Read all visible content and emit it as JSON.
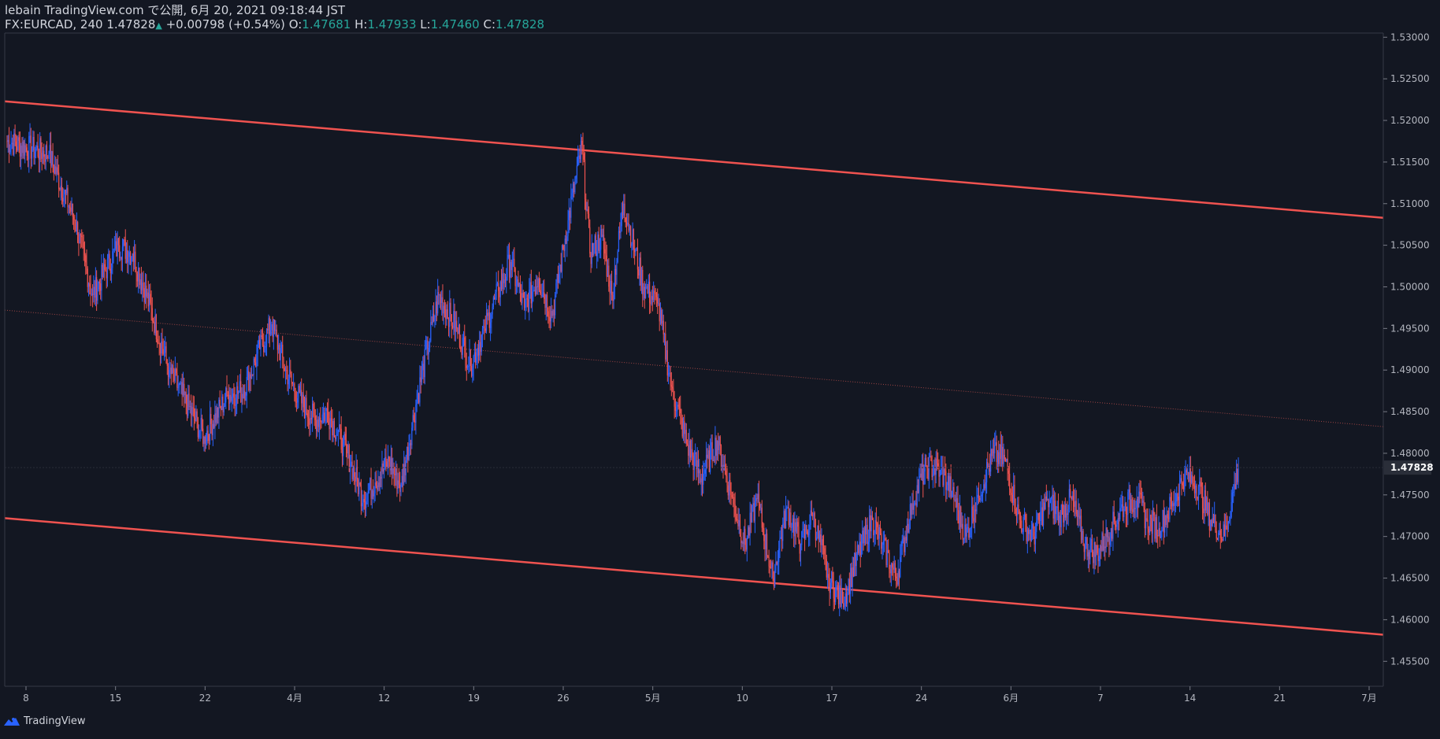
{
  "header": {
    "line1": "lebain TradingView.com で公開, 6月 20, 2021 09:18:44 JST",
    "symbol": "FX:EURCAD, 240",
    "last": "1.47828",
    "change": "+0.00798 (+0.54%)",
    "o_label": "O:",
    "o": "1.47681",
    "h_label": "H:",
    "h": "1.47933",
    "l_label": "L:",
    "l": "1.47460",
    "c_label": "C:",
    "c": "1.47828"
  },
  "footer": {
    "brand": "TradingView"
  },
  "chart_data": {
    "type": "candlestick",
    "y_ticks": [
      "1.45500",
      "1.46000",
      "1.46500",
      "1.47000",
      "1.47500",
      "1.48000",
      "1.48500",
      "1.49000",
      "1.49500",
      "1.50000",
      "1.50500",
      "1.51000",
      "1.51500",
      "1.52000",
      "1.52500",
      "1.53000"
    ],
    "ylim": [
      1.452,
      1.5305
    ],
    "last_price_label": "1.47828",
    "last_price": 1.47828,
    "x_ticks": [
      "8",
      "15",
      "22",
      "4月",
      "12",
      "19",
      "26",
      "5月",
      "10",
      "17",
      "24",
      "6月",
      "7",
      "14",
      "21",
      "7月"
    ],
    "up_color": "#2962ff",
    "down_color": "#ef5350",
    "close_path": [
      [
        1.516,
        43
      ],
      [
        1.508,
        26
      ],
      [
        1.499,
        18
      ],
      [
        1.505,
        26
      ],
      [
        1.504,
        14
      ],
      [
        1.5005,
        10
      ],
      [
        1.49,
        27
      ],
      [
        1.487,
        13
      ],
      [
        1.482,
        22
      ],
      [
        1.487,
        24
      ],
      [
        1.4875,
        16
      ],
      [
        1.4925,
        16
      ],
      [
        1.4955,
        12
      ],
      [
        1.49,
        14
      ],
      [
        1.486,
        16
      ],
      [
        1.484,
        14
      ],
      [
        1.485,
        12
      ],
      [
        1.48,
        20
      ],
      [
        1.4745,
        16
      ],
      [
        1.4765,
        12
      ],
      [
        1.479,
        14
      ],
      [
        1.476,
        12
      ],
      [
        1.4865,
        16
      ],
      [
        1.499,
        22
      ],
      [
        1.495,
        18
      ],
      [
        1.4905,
        14
      ],
      [
        1.495,
        14
      ],
      [
        1.4995,
        14
      ],
      [
        1.503,
        12
      ],
      [
        1.4975,
        14
      ],
      [
        1.501,
        14
      ],
      [
        1.4965,
        14
      ],
      [
        1.508,
        16
      ],
      [
        1.517,
        14
      ],
      [
        1.504,
        8
      ],
      [
        1.506,
        12
      ],
      [
        1.499,
        10
      ],
      [
        1.51,
        12
      ],
      [
        1.5,
        20
      ],
      [
        1.498,
        14
      ],
      [
        1.488,
        14
      ],
      [
        1.481,
        16
      ],
      [
        1.477,
        14
      ],
      [
        1.4815,
        16
      ],
      [
        1.475,
        14
      ],
      [
        1.469,
        14
      ],
      [
        1.4745,
        12
      ],
      [
        1.465,
        16
      ],
      [
        1.4735,
        14
      ],
      [
        1.469,
        14
      ],
      [
        1.4725,
        12
      ],
      [
        1.465,
        16
      ],
      [
        1.462,
        14
      ],
      [
        1.468,
        16
      ],
      [
        1.472,
        14
      ],
      [
        1.469,
        10
      ],
      [
        1.465,
        14
      ],
      [
        1.474,
        16
      ],
      [
        1.4785,
        14
      ],
      [
        1.478,
        14
      ],
      [
        1.4755,
        12
      ],
      [
        1.47,
        14
      ],
      [
        1.475,
        12
      ],
      [
        1.48,
        16
      ],
      [
        1.479,
        12
      ],
      [
        1.472,
        14
      ],
      [
        1.47,
        14
      ],
      [
        1.4745,
        14
      ],
      [
        1.4725,
        12
      ],
      [
        1.4745,
        12
      ],
      [
        1.469,
        14
      ],
      [
        1.468,
        12
      ],
      [
        1.471,
        14
      ],
      [
        1.474,
        14
      ],
      [
        1.4745,
        12
      ],
      [
        1.472,
        10
      ],
      [
        1.471,
        12
      ],
      [
        1.474,
        14
      ],
      [
        1.4775,
        12
      ],
      [
        1.476,
        14
      ],
      [
        1.472,
        12
      ],
      [
        1.47,
        14
      ],
      [
        1.4783,
        14
      ]
    ]
  }
}
